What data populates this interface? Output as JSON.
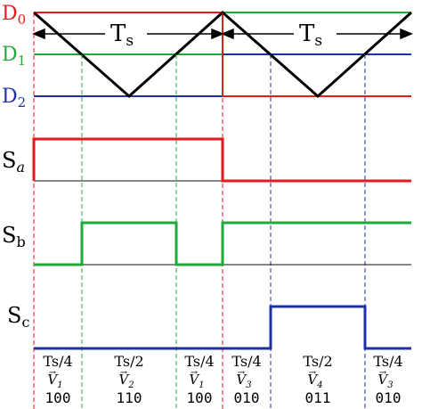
{
  "colors": {
    "red": "#e41a1c",
    "green": "#1faa3a",
    "blue": "#1f2fa8",
    "black": "#000000",
    "baseline": "#111111"
  },
  "carriers": {
    "d0": {
      "main": "D",
      "sub": "0"
    },
    "d1": {
      "main": "D",
      "sub": "1"
    },
    "d2": {
      "main": "D",
      "sub": "2"
    },
    "period": {
      "main": "T",
      "sub": "s"
    }
  },
  "signals": {
    "sa": {
      "main": "S",
      "sub": "a"
    },
    "sb": {
      "main": "S",
      "sub": "b"
    },
    "sc": {
      "main": "S",
      "sub": "c"
    }
  },
  "intervals": [
    {
      "duration": "Ts/4",
      "vector_main": "V",
      "vector_sub": "1",
      "state": "100"
    },
    {
      "duration": "Ts/2",
      "vector_main": "V",
      "vector_sub": "2",
      "state": "110"
    },
    {
      "duration": "Ts/4",
      "vector_main": "V",
      "vector_sub": "1",
      "state": "100"
    },
    {
      "duration": "Ts/4",
      "vector_main": "V",
      "vector_sub": "3",
      "state": "010"
    },
    {
      "duration": "Ts/2",
      "vector_main": "V",
      "vector_sub": "4",
      "state": "011"
    },
    {
      "duration": "Ts/4",
      "vector_main": "V",
      "vector_sub": "3",
      "state": "010"
    }
  ]
}
